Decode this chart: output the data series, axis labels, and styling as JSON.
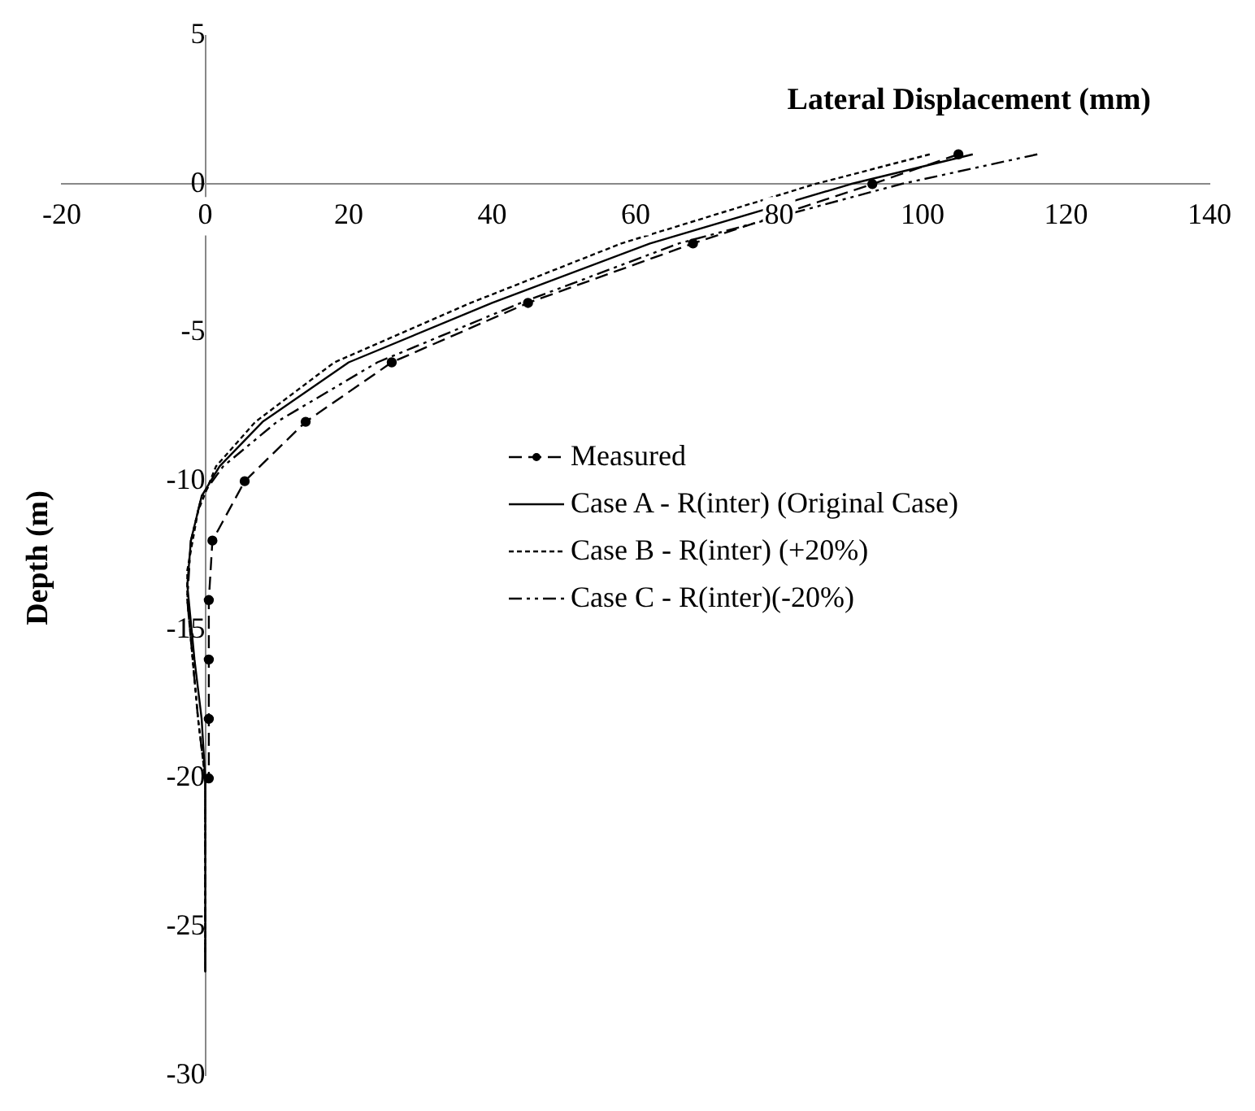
{
  "chart_data": {
    "type": "line",
    "xlabel": "Lateral Displacement (mm)",
    "ylabel": "Depth (m)",
    "xlim": [
      -20,
      140
    ],
    "xticks": [
      -20,
      0,
      20,
      40,
      60,
      80,
      100,
      120,
      140
    ],
    "ylim": [
      -30,
      5
    ],
    "yticks": [
      -30,
      -25,
      -20,
      -15,
      -10,
      -5,
      0,
      5
    ],
    "grid": false,
    "legend": "right",
    "series": [
      {
        "name": "Measured",
        "color": "#000000",
        "line_style": "dashed",
        "marker": "circle",
        "x": [
          105,
          93,
          68,
          45,
          26,
          14,
          5.5,
          1,
          0.5,
          0.5,
          0.5,
          0.5
        ],
        "values": [
          1,
          0,
          -2,
          -4,
          -6,
          -8,
          -10,
          -12,
          -14,
          -16,
          -18,
          -20
        ]
      },
      {
        "name": "Case A - R(inter) (Original Case)",
        "color": "#000000",
        "line_style": "solid",
        "marker": "none",
        "x": [
          107,
          90,
          62,
          40,
          20,
          8,
          2,
          -0.5,
          -2,
          -2.5,
          -1.5,
          -0.5,
          0,
          0
        ],
        "values": [
          1,
          0,
          -2,
          -4,
          -6,
          -8,
          -9.5,
          -10.5,
          -12,
          -13.5,
          -16,
          -18,
          -20,
          -26.5
        ]
      },
      {
        "name": "Case B - R(inter) (+20%)",
        "color": "#000000",
        "line_style": "dotted",
        "marker": "none",
        "x": [
          101,
          85,
          58,
          37,
          18,
          7,
          1.5,
          -1,
          -2.5,
          -2.5,
          -1,
          0,
          0
        ],
        "values": [
          1,
          0,
          -2,
          -4,
          -6,
          -8,
          -9.5,
          -11,
          -13,
          -14,
          -18,
          -20,
          -26.5
        ]
      },
      {
        "name": "Case C - R(inter)(-20%)",
        "color": "#000000",
        "line_style": "dashdot",
        "marker": "none",
        "x": [
          116,
          97,
          66,
          44,
          24,
          10,
          2.5,
          -0.5,
          -2,
          -2.5,
          -1,
          0,
          0
        ],
        "values": [
          1,
          0,
          -2,
          -4,
          -6,
          -8,
          -9.5,
          -10.5,
          -12,
          -14,
          -18,
          -20,
          -26.5
        ]
      }
    ]
  }
}
